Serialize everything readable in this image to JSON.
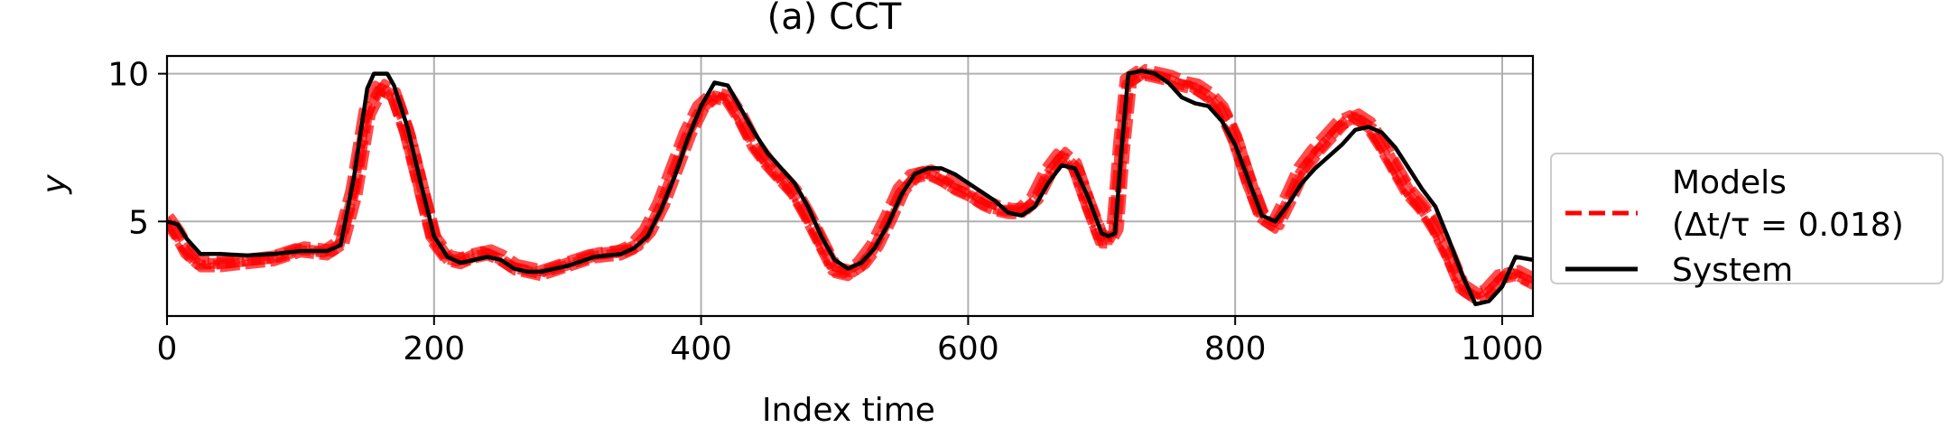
{
  "chart_data": {
    "type": "line",
    "title": "(a) CCT",
    "xlabel": "Index time",
    "ylabel": "y",
    "xlim": [
      0,
      1023
    ],
    "ylim": [
      1.8,
      10.6
    ],
    "xticks": [
      0,
      200,
      400,
      600,
      800,
      1000
    ],
    "yticks": [
      5,
      10
    ],
    "grid": true,
    "legend": {
      "placement": "right, outside plot",
      "entries": [
        {
          "label_line1": "Models",
          "label_line2": "(Δt/τ = 0.018)",
          "style": "dashed",
          "color": "#ff0000"
        },
        {
          "label_line1": "System",
          "label_line2": "",
          "style": "solid",
          "color": "#000000"
        }
      ]
    },
    "colors": {
      "models": "#ff0000",
      "system": "#000000",
      "grid": "#b0b0b0"
    },
    "series": [
      {
        "name": "System",
        "x": [
          0,
          8,
          15,
          25,
          40,
          60,
          80,
          100,
          120,
          130,
          140,
          150,
          155,
          165,
          170,
          180,
          190,
          200,
          210,
          220,
          230,
          240,
          250,
          260,
          270,
          280,
          300,
          320,
          340,
          350,
          360,
          370,
          380,
          390,
          400,
          410,
          420,
          430,
          440,
          450,
          460,
          470,
          480,
          490,
          500,
          510,
          520,
          530,
          540,
          550,
          560,
          570,
          580,
          590,
          600,
          610,
          620,
          630,
          640,
          650,
          660,
          670,
          680,
          690,
          700,
          705,
          710,
          715,
          720,
          730,
          740,
          750,
          760,
          770,
          780,
          790,
          800,
          810,
          820,
          830,
          840,
          850,
          860,
          870,
          880,
          890,
          900,
          910,
          920,
          930,
          940,
          950,
          960,
          970,
          980,
          990,
          1000,
          1010,
          1023
        ],
        "values": [
          5.0,
          4.9,
          4.4,
          3.9,
          3.9,
          3.85,
          3.9,
          4.0,
          4.0,
          4.2,
          6.5,
          9.5,
          10.0,
          10.0,
          9.6,
          8.2,
          6.3,
          4.5,
          3.8,
          3.6,
          3.7,
          3.8,
          3.7,
          3.4,
          3.3,
          3.3,
          3.5,
          3.8,
          3.9,
          4.1,
          4.5,
          5.4,
          6.5,
          7.8,
          8.9,
          9.7,
          9.6,
          8.8,
          8.0,
          7.3,
          6.8,
          6.3,
          5.5,
          4.5,
          3.7,
          3.4,
          3.6,
          4.1,
          4.9,
          5.9,
          6.6,
          6.8,
          6.8,
          6.6,
          6.3,
          6.0,
          5.7,
          5.3,
          5.2,
          5.5,
          6.3,
          6.9,
          6.8,
          5.8,
          4.6,
          4.5,
          4.6,
          7.5,
          10.0,
          10.1,
          10.0,
          9.7,
          9.2,
          9.0,
          8.9,
          8.4,
          7.6,
          6.4,
          5.2,
          5.0,
          5.6,
          6.3,
          6.8,
          7.2,
          7.6,
          8.1,
          8.2,
          8.0,
          7.5,
          6.8,
          6.1,
          5.5,
          4.4,
          3.2,
          2.2,
          2.3,
          2.8,
          3.8,
          3.7
        ]
      },
      {
        "name": "Models",
        "x": [
          0,
          8,
          15,
          25,
          40,
          60,
          80,
          100,
          120,
          130,
          140,
          150,
          160,
          170,
          180,
          190,
          200,
          210,
          220,
          230,
          240,
          250,
          260,
          270,
          280,
          300,
          320,
          340,
          350,
          360,
          370,
          380,
          390,
          400,
          410,
          420,
          430,
          440,
          450,
          460,
          470,
          480,
          490,
          500,
          510,
          520,
          530,
          540,
          550,
          560,
          570,
          580,
          590,
          600,
          610,
          620,
          630,
          640,
          650,
          660,
          670,
          680,
          690,
          700,
          705,
          710,
          715,
          720,
          730,
          740,
          750,
          760,
          770,
          780,
          790,
          800,
          810,
          820,
          830,
          840,
          850,
          860,
          870,
          880,
          890,
          900,
          910,
          920,
          930,
          940,
          950,
          960,
          970,
          980,
          990,
          1000,
          1010,
          1023
        ],
        "values": [
          5.1,
          4.6,
          4.0,
          3.6,
          3.6,
          3.7,
          3.8,
          4.1,
          4.0,
          4.3,
          6.0,
          8.7,
          9.6,
          9.3,
          8.0,
          6.2,
          4.4,
          3.8,
          3.7,
          3.9,
          4.0,
          3.8,
          3.5,
          3.4,
          3.3,
          3.6,
          3.9,
          4.0,
          4.2,
          4.7,
          5.6,
          6.8,
          8.0,
          8.9,
          9.3,
          9.2,
          8.5,
          7.6,
          7.0,
          6.5,
          6.0,
          5.2,
          4.3,
          3.4,
          3.3,
          3.6,
          4.2,
          5.1,
          6.1,
          6.6,
          6.7,
          6.5,
          6.2,
          6.0,
          5.7,
          5.5,
          5.4,
          5.4,
          5.8,
          6.7,
          7.3,
          6.9,
          5.6,
          4.4,
          4.4,
          4.8,
          7.6,
          9.8,
          10.1,
          10.0,
          9.9,
          9.7,
          9.6,
          9.3,
          8.8,
          7.8,
          6.4,
          5.2,
          4.9,
          5.8,
          6.8,
          7.4,
          7.9,
          8.4,
          8.6,
          8.3,
          7.6,
          6.8,
          6.0,
          5.5,
          4.8,
          3.9,
          2.8,
          2.5,
          2.7,
          3.2,
          3.3,
          3.0
        ]
      }
    ]
  }
}
